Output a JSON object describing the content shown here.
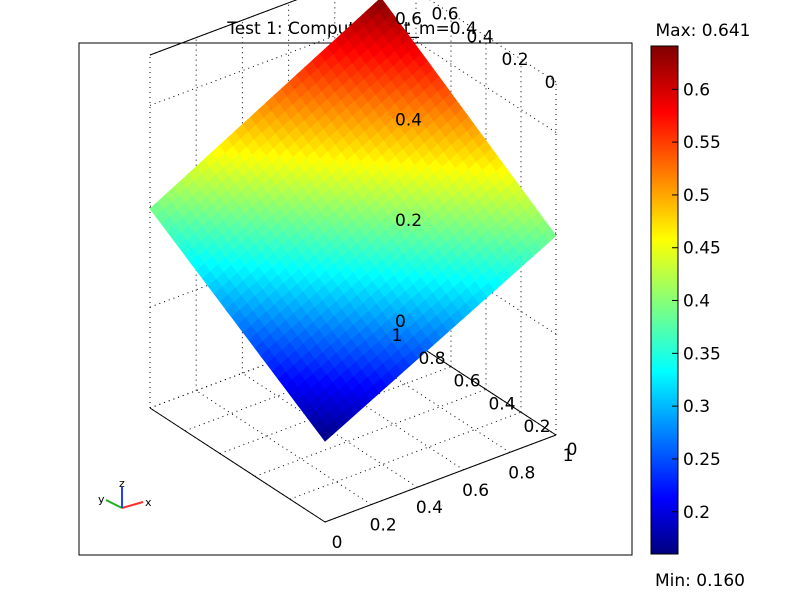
{
  "chart_data": {
    "type": "surface",
    "title": "Test 1:  Computed α, t_m=0.4",
    "x_ticks": [
      "0",
      "0.2",
      "0.4",
      "0.6",
      "0.8",
      "1"
    ],
    "y_ticks": [
      "0",
      "0.2",
      "0.4",
      "0.6",
      "0.8",
      "1"
    ],
    "z_ticks": [
      "0",
      "0.2",
      "0.4",
      "0.6"
    ],
    "xlim": [
      0,
      1
    ],
    "ylim": [
      0,
      1
    ],
    "zlim": [
      0,
      0.7
    ],
    "surface_corners": {
      "x0_y0": 0.16,
      "x1_y0": 0.395,
      "x0_y1": 0.395,
      "x1_y1": 0.641
    },
    "colorbar": {
      "max_label": "Max: 0.641",
      "min_label": "Min: 0.160",
      "ticks": [
        "0.6",
        "0.55",
        "0.5",
        "0.45",
        "0.4",
        "0.35",
        "0.3",
        "0.25",
        "0.2"
      ],
      "range": [
        0.16,
        0.641
      ],
      "colormap": "jet"
    },
    "axis_triad": {
      "x": "x",
      "y": "y",
      "z": "z"
    },
    "grid": true
  },
  "colors": {
    "triad_x": "#ff3030",
    "triad_y": "#20b020",
    "triad_z": "#2040ff"
  }
}
